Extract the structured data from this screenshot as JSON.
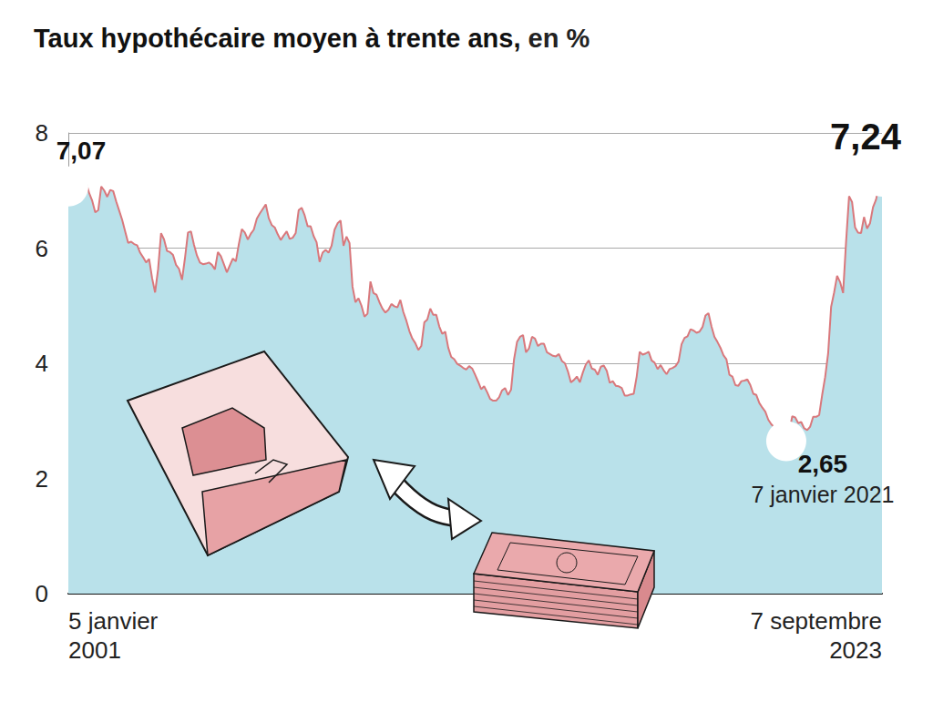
{
  "chart_data": {
    "type": "area",
    "title": "Taux hypothécaire moyen à trente ans,",
    "subtitle": "en %",
    "color": "#d9787c",
    "grid": true,
    "ylim": [
      0,
      8
    ],
    "yticks": [
      0,
      2,
      4,
      6,
      8
    ],
    "categories": [
      "5 janvier\n2001",
      null,
      null,
      null,
      null,
      null,
      null,
      null,
      null,
      null,
      null,
      null,
      null,
      null,
      null,
      null,
      null,
      null,
      null,
      null,
      null,
      null,
      null,
      null,
      null,
      null,
      null,
      null,
      null,
      null,
      null,
      null,
      null,
      null,
      null,
      null,
      null,
      null,
      null,
      null,
      null,
      null,
      null,
      null,
      null,
      null,
      null,
      null,
      null,
      null,
      null,
      null,
      null,
      null,
      null,
      null,
      null,
      null,
      null,
      null,
      null,
      null,
      null,
      null,
      null,
      null,
      null,
      null,
      null,
      null,
      null,
      null,
      null,
      null,
      null,
      null,
      null,
      null,
      null,
      null,
      null,
      null,
      null,
      null,
      null,
      null,
      null,
      null,
      null,
      null,
      null,
      null,
      null,
      null,
      null,
      null,
      null,
      null,
      null,
      null,
      null,
      null,
      null,
      null,
      null,
      null,
      null,
      null,
      null,
      null,
      null,
      null,
      null,
      null,
      null,
      null,
      null,
      null,
      null,
      null,
      null,
      null,
      null,
      null,
      null,
      null,
      null,
      null,
      null,
      null,
      null,
      null,
      null,
      null,
      null,
      null,
      null,
      null,
      null,
      null,
      null,
      null,
      null,
      null,
      null,
      null,
      null,
      null,
      null,
      null,
      null,
      null,
      null,
      null,
      null,
      null,
      null,
      null,
      null,
      null,
      null,
      null,
      null,
      null,
      null,
      null,
      null,
      null,
      null,
      null,
      null,
      null,
      null,
      null,
      null,
      null,
      null,
      null,
      null,
      null,
      null,
      null,
      null,
      null,
      null,
      null,
      null,
      null,
      null,
      null,
      null,
      null,
      null,
      null,
      null,
      null,
      null,
      null,
      null,
      null,
      null,
      null,
      null,
      null,
      null,
      null,
      null,
      null,
      null,
      null,
      null,
      null,
      null,
      null,
      null,
      null,
      null,
      null,
      null,
      null,
      null,
      null,
      null,
      null,
      null,
      null,
      null,
      null,
      null,
      null,
      null,
      null,
      null,
      null,
      null,
      null,
      null,
      null,
      null,
      null,
      null,
      null,
      null,
      null,
      null,
      null,
      null,
      null,
      null,
      null,
      null,
      null,
      null,
      null,
      null,
      null,
      null,
      null,
      null,
      null,
      null,
      null,
      null,
      null,
      null,
      null,
      null,
      null,
      null,
      null,
      null,
      null,
      "7 septembre\n2023"
    ],
    "values": [
      7.07,
      7.05,
      6.95,
      7.08,
      7.15,
      7.16,
      7.13,
      6.95,
      6.82,
      6.62,
      6.66,
      7.07,
      7.0,
      6.89,
      7.01,
      6.99,
      6.81,
      6.65,
      6.49,
      6.29,
      6.09,
      6.11,
      6.07,
      6.05,
      5.92,
      5.84,
      5.75,
      5.81,
      5.48,
      5.23,
      5.63,
      6.26,
      6.15,
      5.95,
      5.93,
      5.88,
      5.71,
      5.64,
      5.45,
      5.83,
      6.27,
      6.29,
      6.06,
      5.87,
      5.75,
      5.72,
      5.73,
      5.75,
      5.71,
      5.63,
      5.93,
      5.86,
      5.72,
      5.58,
      5.7,
      5.82,
      5.77,
      6.07,
      6.33,
      6.27,
      6.15,
      6.25,
      6.32,
      6.51,
      6.6,
      6.68,
      6.76,
      6.52,
      6.4,
      6.36,
      6.24,
      6.14,
      6.22,
      6.29,
      6.16,
      6.18,
      6.26,
      6.66,
      6.7,
      6.57,
      6.38,
      6.38,
      6.21,
      6.1,
      5.76,
      5.92,
      5.97,
      5.92,
      6.04,
      6.32,
      6.43,
      6.48,
      6.04,
      6.2,
      6.09,
      5.33,
      5.06,
      5.13,
      5.0,
      4.81,
      4.86,
      5.42,
      5.22,
      5.19,
      5.06,
      4.95,
      4.88,
      4.93,
      5.03,
      4.99,
      4.97,
      5.1,
      4.89,
      4.74,
      4.56,
      4.43,
      4.35,
      4.23,
      4.3,
      4.71,
      4.76,
      4.95,
      4.84,
      4.84,
      4.64,
      4.51,
      4.55,
      4.27,
      4.11,
      4.07,
      3.99,
      3.96,
      3.92,
      3.89,
      3.95,
      3.91,
      3.8,
      3.68,
      3.55,
      3.6,
      3.5,
      3.38,
      3.35,
      3.35,
      3.41,
      3.53,
      3.57,
      3.45,
      3.54,
      4.07,
      4.37,
      4.46,
      4.49,
      4.19,
      4.26,
      4.46,
      4.43,
      4.3,
      4.34,
      4.34,
      4.19,
      4.16,
      4.13,
      4.12,
      4.16,
      4.04,
      4.0,
      3.86,
      3.67,
      3.71,
      3.77,
      3.67,
      3.84,
      3.98,
      4.05,
      3.91,
      3.89,
      3.8,
      3.94,
      3.96,
      3.87,
      3.66,
      3.69,
      3.61,
      3.6,
      3.57,
      3.44,
      3.44,
      3.46,
      3.47,
      3.77,
      4.2,
      4.15,
      4.17,
      4.2,
      4.05,
      4.01,
      3.9,
      3.97,
      3.88,
      3.81,
      3.9,
      3.92,
      3.95,
      4.03,
      4.33,
      4.44,
      4.47,
      4.59,
      4.57,
      4.53,
      4.55,
      4.63,
      4.83,
      4.87,
      4.64,
      4.46,
      4.37,
      4.27,
      4.14,
      4.07,
      3.8,
      3.77,
      3.62,
      3.61,
      3.69,
      3.7,
      3.72,
      3.62,
      3.47,
      3.45,
      3.31,
      3.23,
      3.16,
      3.02,
      2.94,
      2.89,
      2.83,
      2.77,
      2.68,
      2.65,
      2.81,
      3.08,
      3.06,
      2.96,
      2.98,
      2.87,
      2.84,
      2.9,
      3.07,
      3.07,
      3.1,
      3.45,
      3.76,
      4.17,
      4.98,
      5.23,
      5.52,
      5.41,
      5.22,
      6.11,
      6.9,
      6.8,
      6.36,
      6.27,
      6.26,
      6.54,
      6.34,
      6.43,
      6.71,
      6.84,
      7.07,
      7.24
    ],
    "value_labels": [
      "7,07",
      null,
      null,
      null,
      null,
      null,
      null,
      null,
      null,
      null,
      null,
      null,
      null,
      null,
      null,
      null,
      null,
      null,
      null,
      null,
      null,
      null,
      null,
      null,
      null,
      null,
      null,
      null,
      null,
      null,
      null,
      null,
      null,
      null,
      null,
      null,
      null,
      null,
      null,
      null,
      null,
      null,
      null,
      null,
      null,
      null,
      null,
      null,
      null,
      null,
      null,
      null,
      null,
      null,
      null,
      null,
      null,
      null,
      null,
      null,
      null,
      null,
      null,
      null,
      null,
      null,
      null,
      null,
      null,
      null,
      null,
      null,
      null,
      null,
      null,
      null,
      null,
      null,
      null,
      null,
      null,
      null,
      null,
      null,
      null,
      null,
      null,
      null,
      null,
      null,
      null,
      null,
      null,
      null,
      null,
      null,
      null,
      null,
      null,
      null,
      null,
      null,
      null,
      null,
      null,
      null,
      null,
      null,
      null,
      null,
      null,
      null,
      null,
      null,
      null,
      null,
      null,
      null,
      null,
      null,
      null,
      null,
      null,
      null,
      null,
      null,
      null,
      null,
      null,
      null,
      null,
      null,
      null,
      null,
      null,
      null,
      null,
      null,
      null,
      null,
      null,
      null,
      null,
      null,
      null,
      null,
      null,
      null,
      null,
      null,
      null,
      null,
      null,
      null,
      null,
      null,
      null,
      null,
      null,
      null,
      null,
      null,
      null,
      null,
      null,
      null,
      null,
      null,
      null,
      null,
      null,
      null,
      null,
      null,
      null,
      null,
      null,
      null,
      null,
      null,
      null,
      null,
      null,
      null,
      null,
      null,
      null,
      null,
      null,
      null,
      null,
      null,
      null,
      null,
      null,
      null,
      null,
      null,
      null,
      null,
      null,
      null,
      null,
      null,
      null,
      null,
      null,
      null,
      null,
      null,
      null,
      null,
      null,
      null,
      null,
      null,
      null,
      null,
      null,
      null,
      null,
      null,
      null,
      null,
      null,
      null,
      null,
      null,
      null,
      null,
      null,
      null,
      null,
      null,
      null,
      null,
      null,
      null,
      null,
      null,
      "2,65",
      null,
      null,
      null,
      null,
      null,
      null,
      null,
      null,
      null,
      null,
      null,
      null,
      null,
      null,
      null,
      null,
      null,
      null,
      null,
      null,
      null,
      null,
      null,
      null,
      null,
      null,
      null,
      null,
      null,
      null,
      null,
      "7,24"
    ],
    "annotations": [
      {
        "index": 240,
        "text": "7 janvier 2021"
      }
    ]
  }
}
